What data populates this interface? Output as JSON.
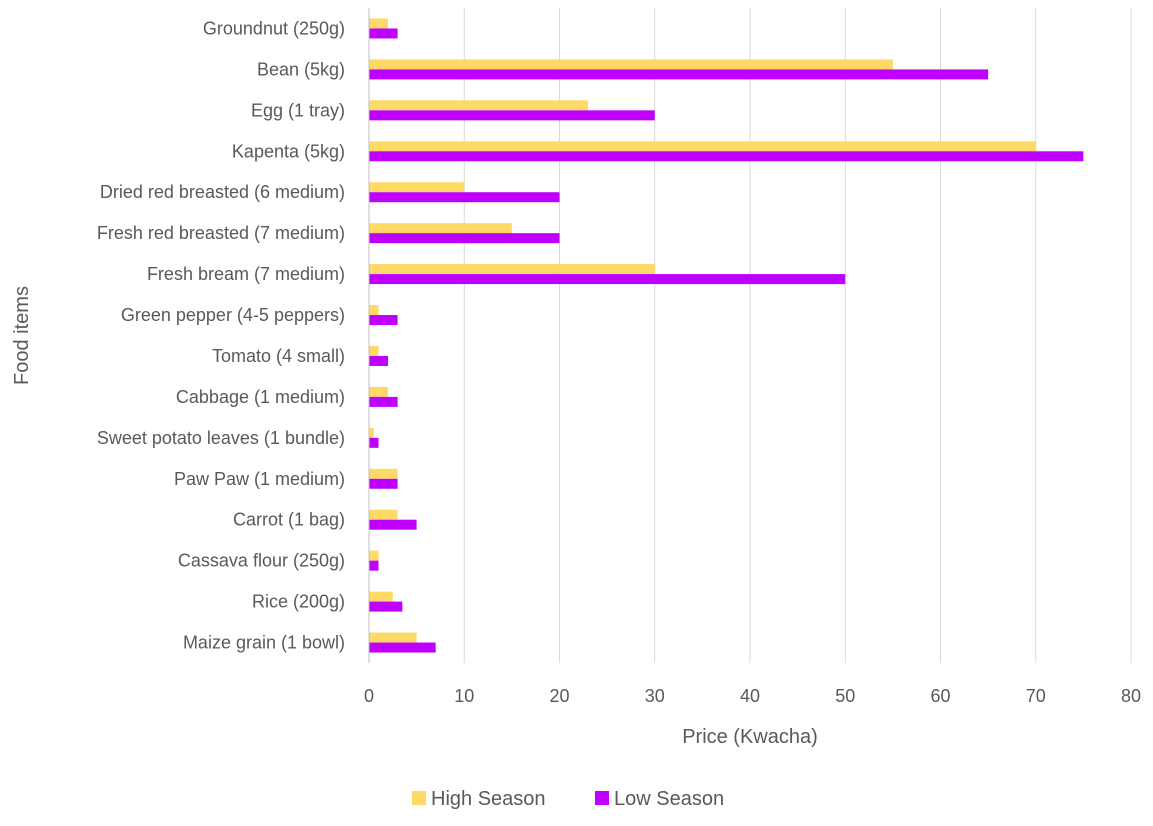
{
  "chart_data": {
    "type": "bar",
    "orientation": "horizontal",
    "title": "",
    "xlabel": "Price (Kwacha)",
    "ylabel": "Food items",
    "xlim": [
      0,
      80
    ],
    "x_ticks": [
      0,
      10,
      20,
      30,
      40,
      50,
      60,
      70,
      80
    ],
    "grid": true,
    "legend_position": "bottom",
    "categories": [
      "Groundnut (250g)",
      "Bean (5kg)",
      "Egg (1 tray)",
      "Kapenta (5kg)",
      "Dried red breasted (6 medium)",
      "Fresh red breasted (7 medium)",
      "Fresh bream (7 medium)",
      "Green pepper (4-5 peppers)",
      "Tomato (4 small)",
      "Cabbage (1 medium)",
      "Sweet potato leaves (1 bundle)",
      "Paw Paw (1 medium)",
      "Carrot (1 bag)",
      "Cassava flour (250g)",
      "Rice (200g)",
      "Maize grain (1 bowl)"
    ],
    "series": [
      {
        "name": "High Season",
        "color": "#FFD966",
        "values": [
          2,
          55,
          23,
          70,
          10,
          15,
          30,
          1,
          1,
          2,
          0.5,
          3,
          3,
          1,
          2.5,
          5
        ]
      },
      {
        "name": "Low Season",
        "color": "#BF00FF",
        "values": [
          3,
          65,
          30,
          75,
          20,
          20,
          50,
          3,
          2,
          3,
          1,
          3,
          5,
          1,
          3.5,
          7
        ]
      }
    ]
  }
}
